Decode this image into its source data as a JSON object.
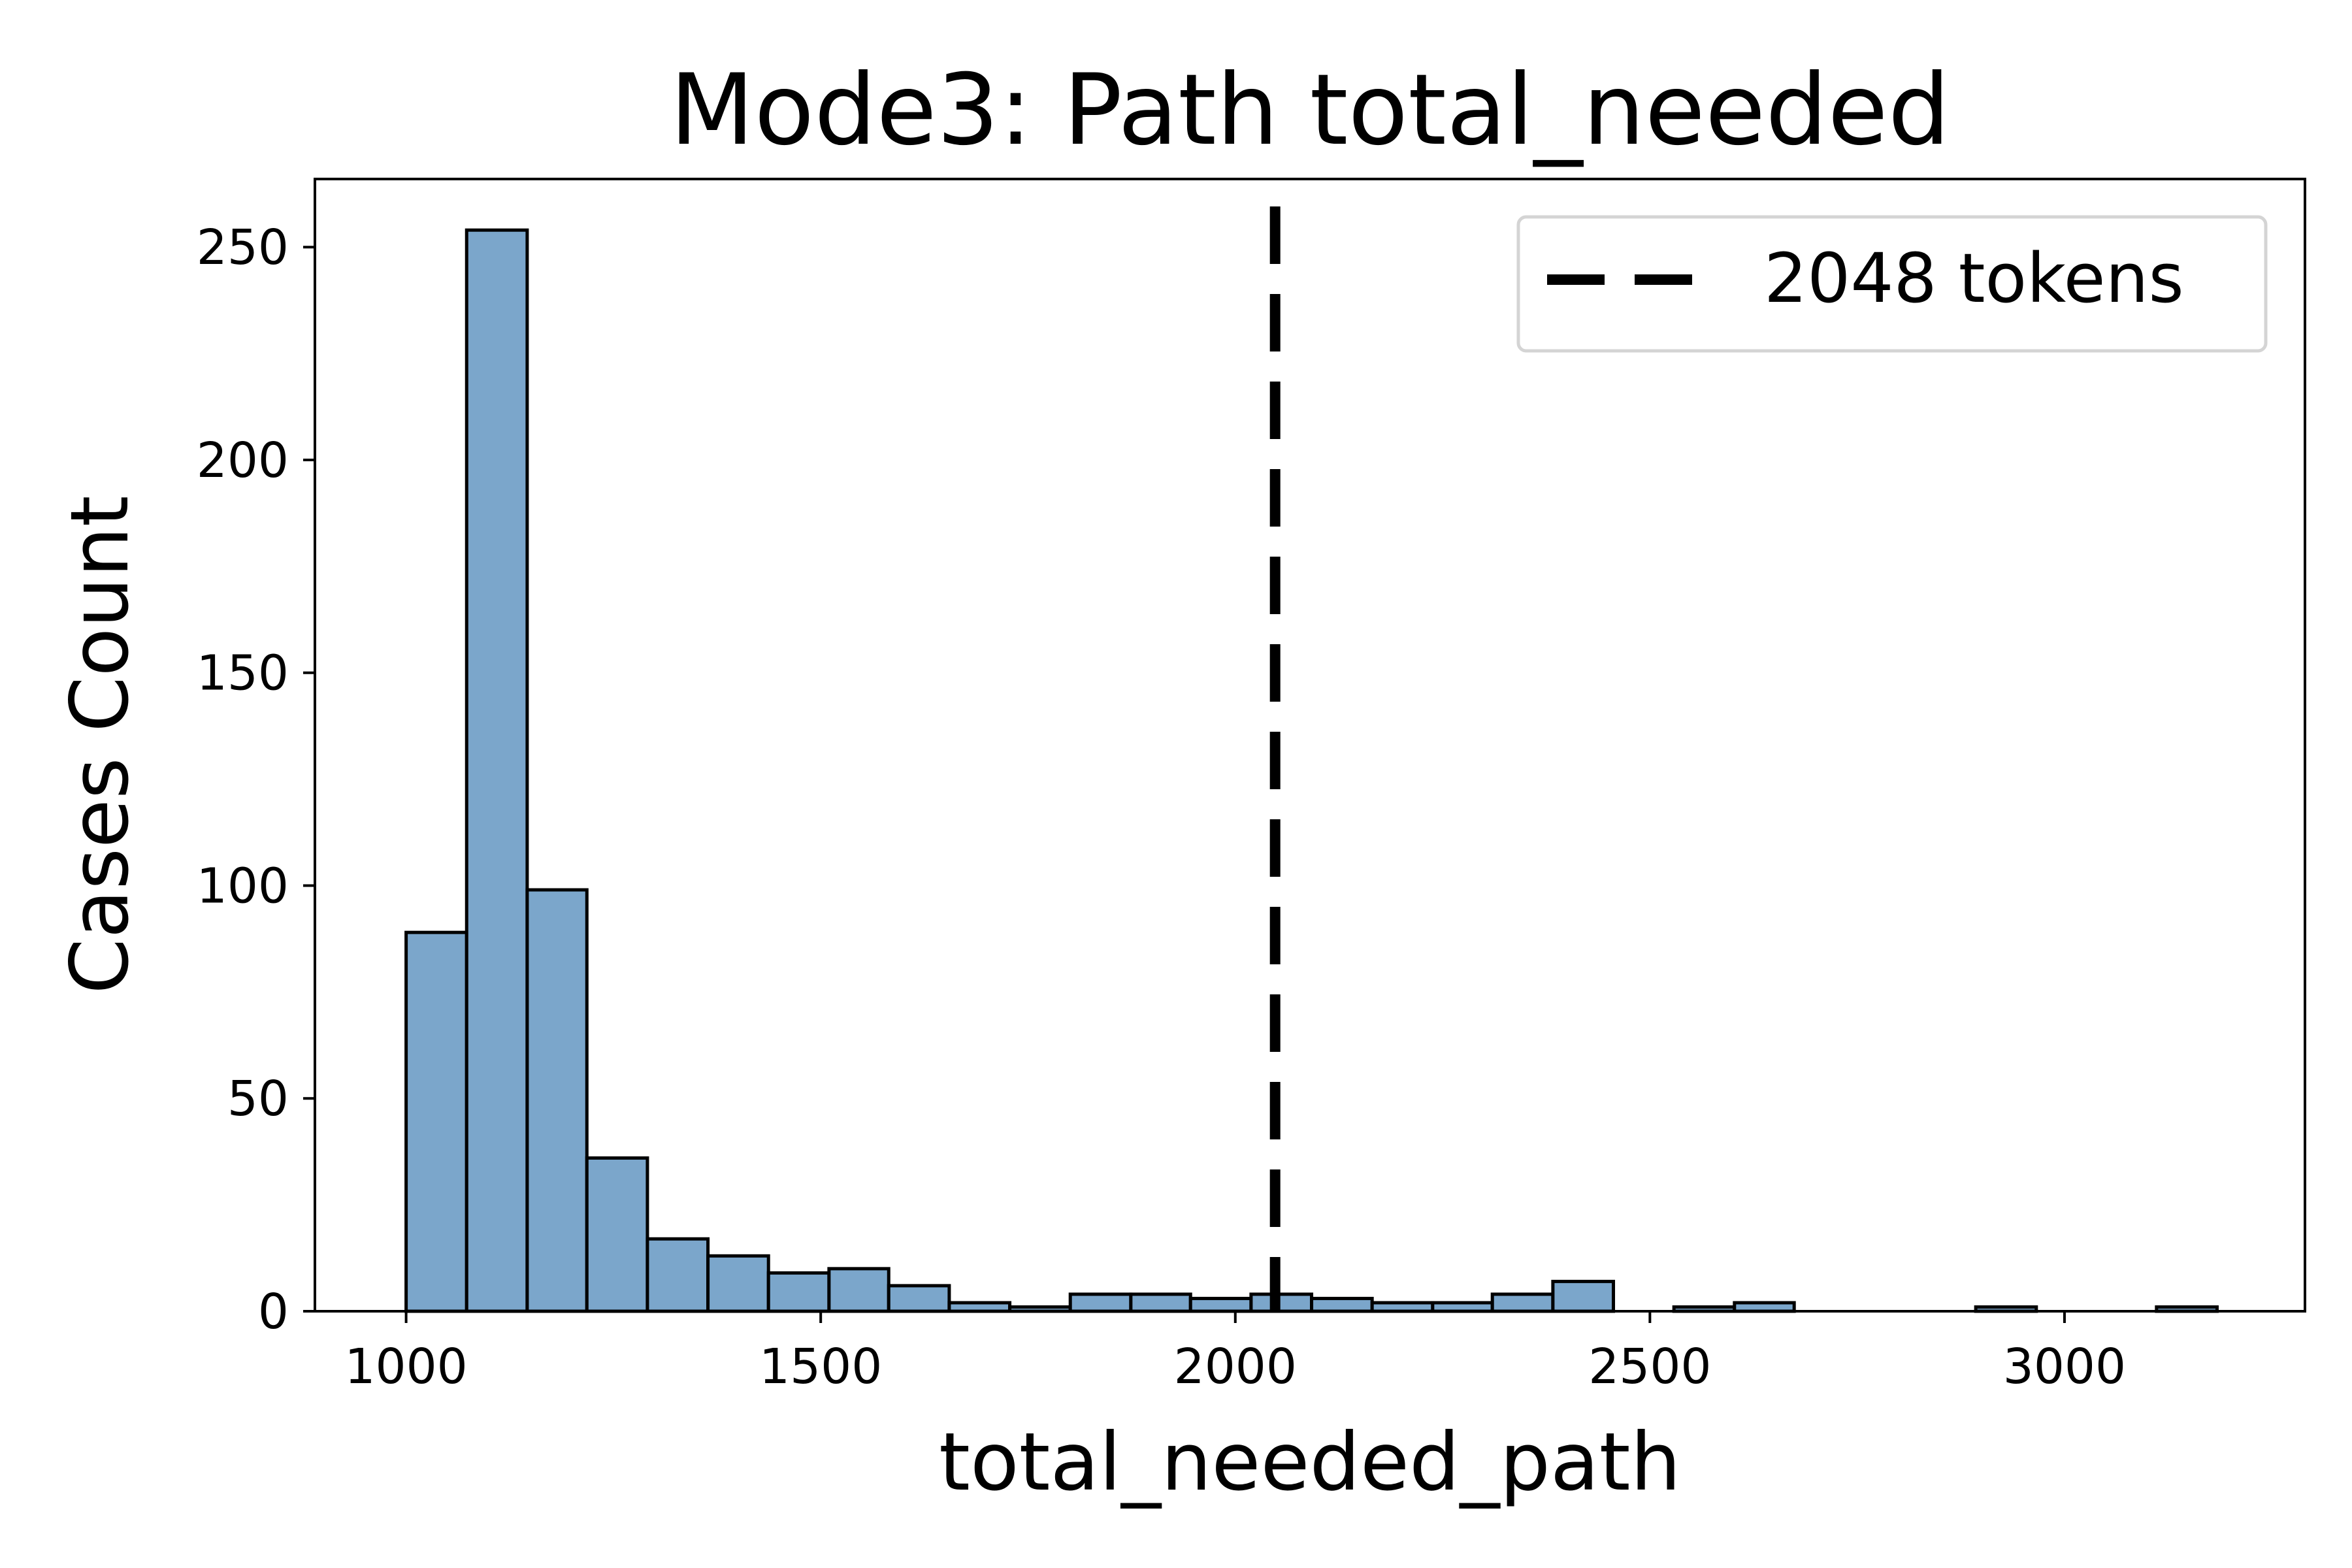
{
  "chart_data": {
    "type": "bar",
    "subtype": "histogram",
    "title": "Mode3: Path total_needed",
    "xlabel": "total_needed_path",
    "ylabel": "Cases Count",
    "xlim": [
      890,
      3290
    ],
    "ylim": [
      0,
      266
    ],
    "xticks": [
      1000,
      1500,
      2000,
      2500,
      3000
    ],
    "yticks": [
      0,
      50,
      100,
      150,
      200,
      250
    ],
    "bins": [
      {
        "x0": 1000,
        "x1": 1073,
        "count": 89
      },
      {
        "x0": 1073,
        "x1": 1146,
        "count": 254
      },
      {
        "x0": 1146,
        "x1": 1218,
        "count": 99
      },
      {
        "x0": 1218,
        "x1": 1291,
        "count": 36
      },
      {
        "x0": 1291,
        "x1": 1364,
        "count": 17
      },
      {
        "x0": 1364,
        "x1": 1437,
        "count": 13
      },
      {
        "x0": 1437,
        "x1": 1510,
        "count": 9
      },
      {
        "x0": 1510,
        "x1": 1582,
        "count": 10
      },
      {
        "x0": 1582,
        "x1": 1655,
        "count": 6
      },
      {
        "x0": 1655,
        "x1": 1728,
        "count": 2
      },
      {
        "x0": 1728,
        "x1": 1801,
        "count": 1
      },
      {
        "x0": 1801,
        "x1": 1874,
        "count": 4
      },
      {
        "x0": 1874,
        "x1": 1946,
        "count": 4
      },
      {
        "x0": 1946,
        "x1": 2019,
        "count": 3
      },
      {
        "x0": 2019,
        "x1": 2092,
        "count": 4
      },
      {
        "x0": 2092,
        "x1": 2165,
        "count": 3
      },
      {
        "x0": 2165,
        "x1": 2238,
        "count": 2
      },
      {
        "x0": 2238,
        "x1": 2310,
        "count": 2
      },
      {
        "x0": 2310,
        "x1": 2383,
        "count": 4
      },
      {
        "x0": 2383,
        "x1": 2456,
        "count": 7
      },
      {
        "x0": 2456,
        "x1": 2529,
        "count": 0
      },
      {
        "x0": 2529,
        "x1": 2602,
        "count": 1
      },
      {
        "x0": 2602,
        "x1": 2674,
        "count": 2
      },
      {
        "x0": 2674,
        "x1": 2747,
        "count": 0
      },
      {
        "x0": 2747,
        "x1": 2820,
        "count": 0
      },
      {
        "x0": 2820,
        "x1": 2893,
        "count": 0
      },
      {
        "x0": 2893,
        "x1": 2966,
        "count": 1
      },
      {
        "x0": 2966,
        "x1": 3038,
        "count": 0
      },
      {
        "x0": 3038,
        "x1": 3111,
        "count": 0
      },
      {
        "x0": 3111,
        "x1": 3184,
        "count": 1
      }
    ],
    "reference_line": {
      "x": 2048,
      "style": "dashed",
      "label": "2048 tokens"
    },
    "bar_color": "#7BA6CB",
    "edge_color": "#000000",
    "line_color": "#000000",
    "grid": false,
    "legend_position": "upper right"
  }
}
